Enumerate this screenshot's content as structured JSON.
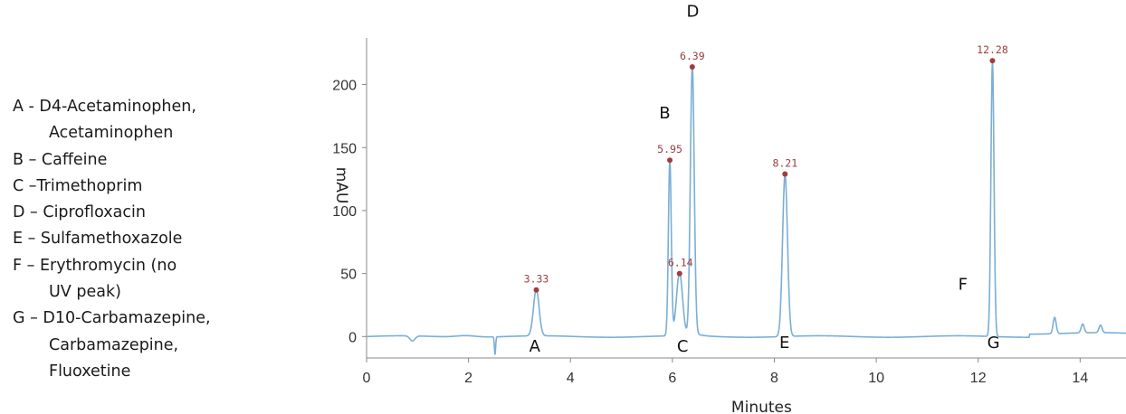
{
  "legend": [
    {
      "lines": [
        "A  - D4-Acetaminophen,",
        "Acetaminophen"
      ]
    },
    {
      "lines": [
        "B – Caffeine"
      ]
    },
    {
      "lines": [
        "C –Trimethoprim"
      ]
    },
    {
      "lines": [
        "D – Ciprofloxacin"
      ]
    },
    {
      "lines": [
        "E – Sulfamethoxazole"
      ]
    },
    {
      "lines": [
        "F – Erythromycin (no",
        "UV peak)"
      ]
    },
    {
      "lines": [
        "G – D10-Carbamazepine,",
        "Carbamazepine,",
        "Fluoxetine"
      ]
    }
  ],
  "chart_data": {
    "type": "line",
    "xlabel": "Minutes",
    "ylabel": "mAU",
    "xlim": [
      0,
      14.9
    ],
    "ylim": [
      -17,
      237
    ],
    "xticks": [
      0,
      2,
      4,
      6,
      8,
      10,
      12,
      14
    ],
    "yticks": [
      0,
      50,
      100,
      150,
      200
    ],
    "grid": false,
    "line_color": "#7aaed6",
    "marker_color": "#a13c3c",
    "peaks": [
      {
        "x": 3.33,
        "y": 37,
        "label": "3.33"
      },
      {
        "x": 5.95,
        "y": 140,
        "label": "5.95"
      },
      {
        "x": 6.14,
        "y": 50,
        "label": "6.14"
      },
      {
        "x": 6.39,
        "y": 214,
        "label": "6.39"
      },
      {
        "x": 8.21,
        "y": 129,
        "label": "8.21"
      },
      {
        "x": 12.28,
        "y": 219,
        "label": "12.28"
      }
    ],
    "minor_features": [
      {
        "x": 0.9,
        "y": -4
      },
      {
        "x": 2.52,
        "y": -14
      },
      {
        "x": 13.5,
        "y": 13
      },
      {
        "x": 14.05,
        "y": 7
      },
      {
        "x": 14.4,
        "y": 6
      }
    ],
    "letter_annotations": [
      {
        "text": "A",
        "x": 3.3,
        "y": -12
      },
      {
        "text": "B",
        "x": 5.85,
        "y": 173
      },
      {
        "text": "C",
        "x": 6.2,
        "y": -12
      },
      {
        "text": "D",
        "x": 6.4,
        "y": 254
      },
      {
        "text": "E",
        "x": 8.2,
        "y": -9
      },
      {
        "text": "F",
        "x": 11.7,
        "y": 37
      },
      {
        "text": "G",
        "x": 12.3,
        "y": -9
      }
    ]
  }
}
